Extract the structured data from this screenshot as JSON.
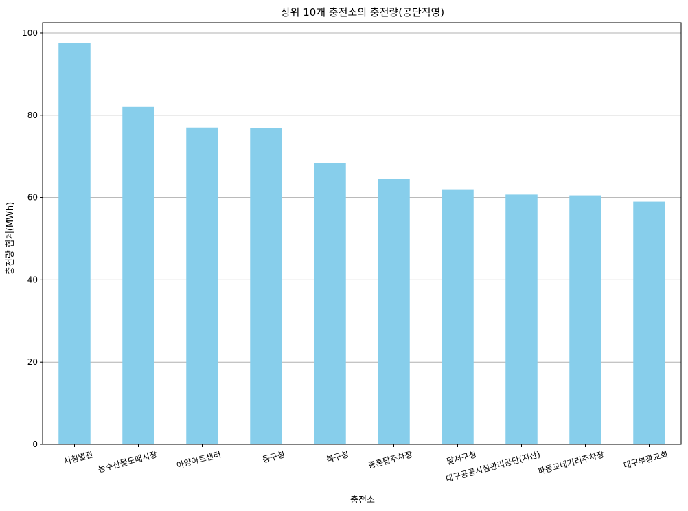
{
  "chart_data": {
    "type": "bar",
    "title": "상위 10개 충전소의 충전량(공단직영)",
    "xlabel": "충전소",
    "ylabel": "충전량 합계(MWh)",
    "categories": [
      "시청별관",
      "농수산물도매시장",
      "아양아트센터",
      "동구청",
      "북구청",
      "충혼탑주차장",
      "달서구청",
      "대구공공시설관리공단(지산)",
      "파동교네거리주차장",
      "대구부광교회"
    ],
    "values": [
      97.5,
      82.0,
      77.0,
      76.8,
      68.4,
      64.5,
      62.0,
      60.7,
      60.5,
      59.0
    ],
    "ylim": [
      0,
      102.5
    ],
    "yticks": [
      0,
      20,
      40,
      60,
      80,
      100
    ],
    "grid": "y",
    "bar_color": "#87CEEB",
    "grid_color": "#b0b0b0"
  }
}
